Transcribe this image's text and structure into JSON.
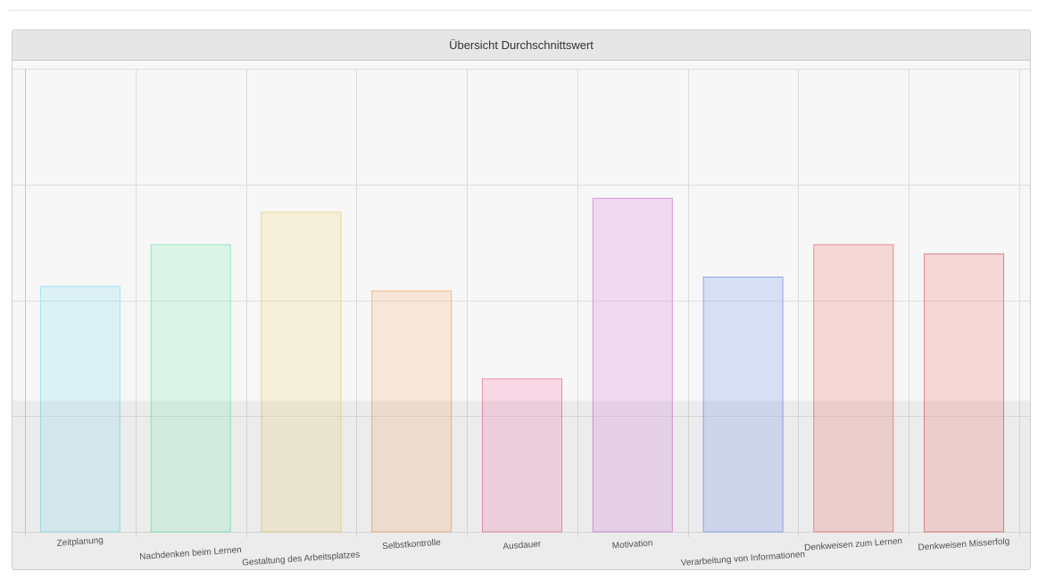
{
  "panel": {
    "title": "Übersicht Durchschnittswert"
  },
  "chart_data": {
    "type": "bar",
    "title": "Übersicht Durchschnittswert",
    "xlabel": "",
    "ylabel": "",
    "ylim": [
      0,
      4
    ],
    "grid": true,
    "categories": [
      "Zeitplanung",
      "Nachdenken beim Lernen",
      "Gestaltung des Arbeitsplatzes",
      "Selbstkontrolle",
      "Ausdauer",
      "Motivation",
      "Verarbeitung von Informationen",
      "Denkweisen zum Lernen",
      "Denkweisen Misserfolg"
    ],
    "values": [
      2.12,
      2.48,
      2.76,
      2.08,
      1.32,
      2.88,
      2.2,
      2.48,
      2.4
    ],
    "colors": [
      {
        "fill": "rgba(164,230,245,0.32)",
        "stroke": "#9fe3f1"
      },
      {
        "fill": "rgba(158,240,198,0.30)",
        "stroke": "#93e8bd"
      },
      {
        "fill": "rgba(238,230,170,0.38)",
        "stroke": "#e6d98f"
      },
      {
        "fill": "rgba(246,198,160,0.35)",
        "stroke": "#f0b689"
      },
      {
        "fill": "rgba(246,165,196,0.38)",
        "stroke": "#eb90b2"
      },
      {
        "fill": "rgba(230,170,228,0.38)",
        "stroke": "#d795d8"
      },
      {
        "fill": "rgba(160,185,240,0.38)",
        "stroke": "#8eaae8"
      },
      {
        "fill": "rgba(246,168,168,0.40)",
        "stroke": "#e88c8c"
      },
      {
        "fill": "rgba(246,168,168,0.40)",
        "stroke": "#e08080"
      }
    ]
  }
}
